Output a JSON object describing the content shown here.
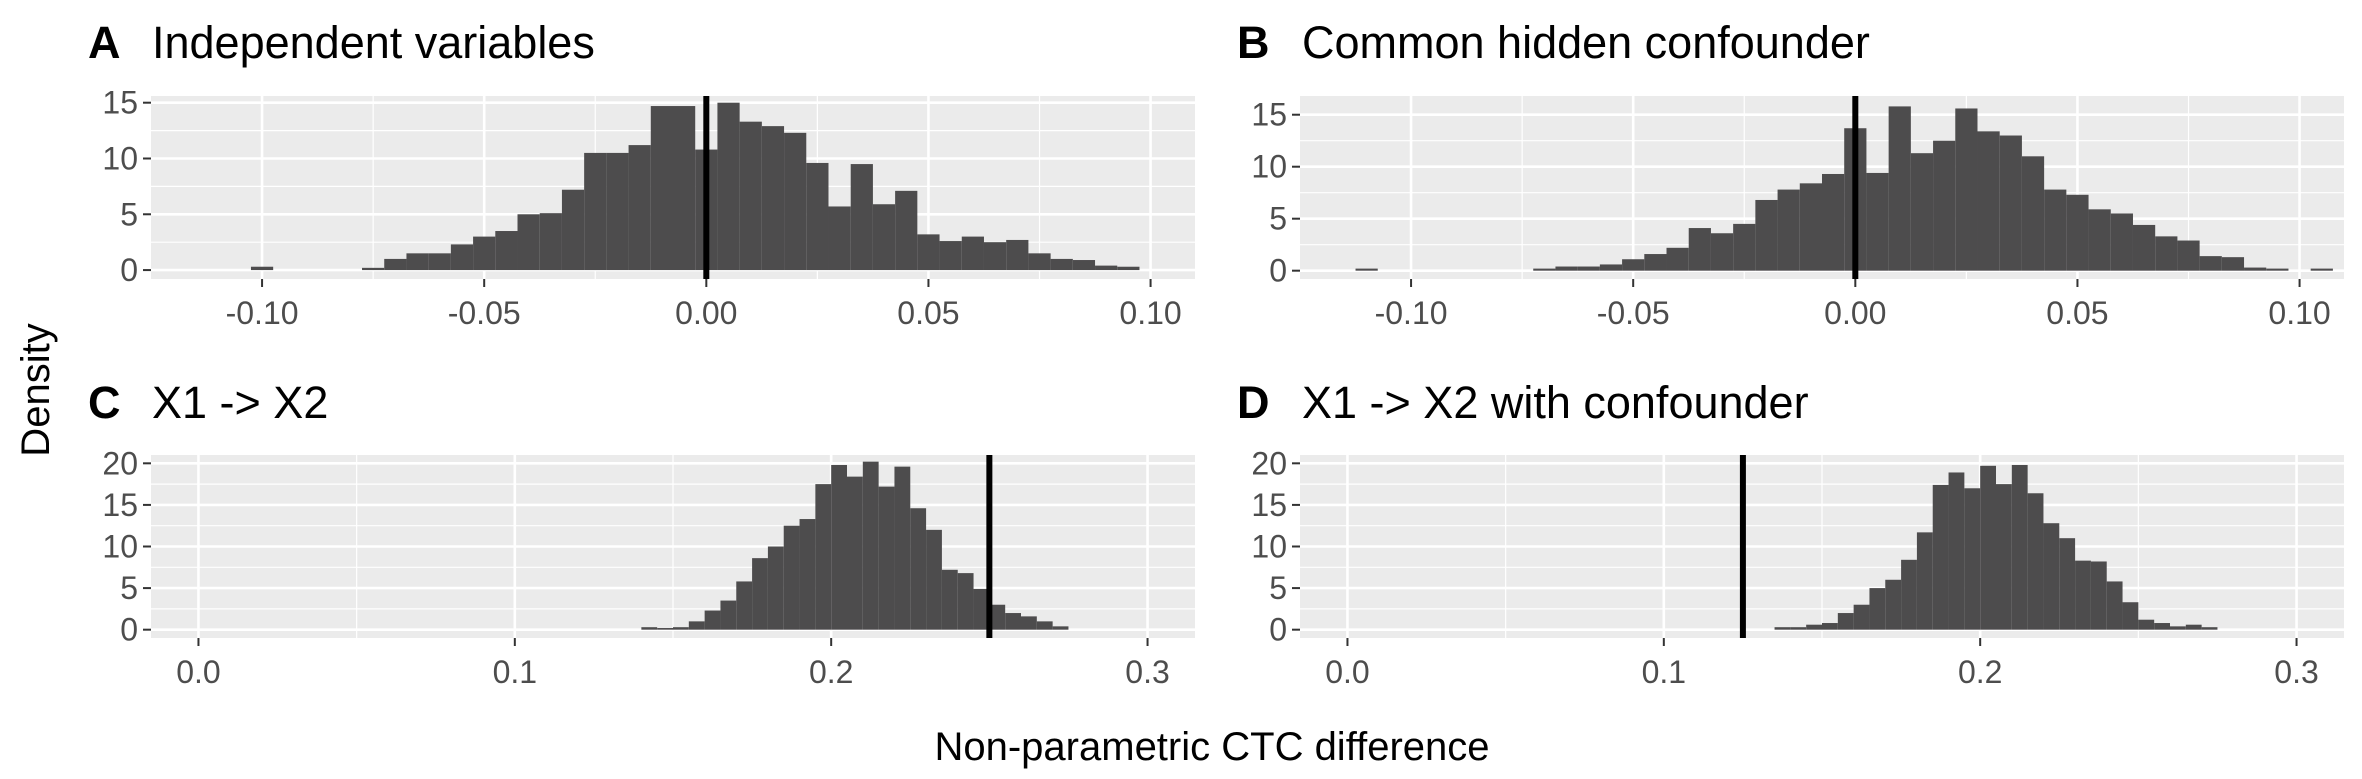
{
  "figure": {
    "ylabel": "Density",
    "xlabel": "Non-parametric CTC difference",
    "colors": {
      "panel_bg": "#EBEBEB",
      "grid": "#FFFFFF",
      "bar": "#4D4C4D",
      "vline": "#000000",
      "text": "#4D4D4D",
      "title": "#000000"
    }
  },
  "chart_data": [
    {
      "type": "bar",
      "tag": "A",
      "title": "Independent variables",
      "xlim": [
        -0.125,
        0.11
      ],
      "ylim": [
        -0.8,
        15.6
      ],
      "xticks": [
        -0.1,
        -0.05,
        0.0,
        0.05,
        0.1
      ],
      "xtick_labels": [
        "-0.10",
        "-0.05",
        "0.00",
        "0.05",
        "0.10"
      ],
      "yticks": [
        0,
        5,
        10,
        15
      ],
      "ytick_labels": [
        "0",
        "5",
        "10",
        "15"
      ],
      "vline": 0.0,
      "bin_width": 0.005,
      "bins_start": -0.1125,
      "values": [
        0,
        0,
        0.3,
        0,
        0,
        0,
        0,
        0.2,
        1,
        1.5,
        1.5,
        2.3,
        3,
        3.5,
        5,
        5.1,
        7.2,
        10.5,
        10.5,
        11.2,
        14.7,
        14.7,
        10.8,
        15,
        13.3,
        12.9,
        12.3,
        9.6,
        5.7,
        9.5,
        5.9,
        7.1,
        3.2,
        2.6,
        3,
        2.5,
        2.7,
        1.5,
        1,
        0.9,
        0.4,
        0.3,
        0,
        0,
        0,
        0,
        0
      ]
    },
    {
      "type": "bar",
      "tag": "B",
      "title": "Common hidden confounder",
      "xlim": [
        -0.125,
        0.11
      ],
      "ylim": [
        -0.8,
        16.8
      ],
      "xticks": [
        -0.1,
        -0.05,
        0.0,
        0.05,
        0.1
      ],
      "xtick_labels": [
        "-0.10",
        "-0.05",
        "0.00",
        "0.05",
        "0.10"
      ],
      "yticks": [
        0,
        5,
        10,
        15
      ],
      "ytick_labels": [
        "0",
        "5",
        "10",
        "15"
      ],
      "vline": 0.0,
      "bin_width": 0.005,
      "bins_start": -0.1125,
      "values": [
        0.2,
        0,
        0,
        0,
        0,
        0,
        0,
        0,
        0.2,
        0.4,
        0.4,
        0.6,
        1.1,
        1.6,
        2.2,
        4.1,
        3.6,
        4.5,
        6.8,
        7.8,
        8.4,
        9.3,
        13.7,
        9.4,
        15.8,
        11.3,
        12.5,
        15.6,
        13.4,
        13,
        11,
        7.8,
        7.3,
        5.9,
        5.5,
        4.4,
        3.3,
        2.9,
        1.4,
        1.3,
        0.3,
        0.2,
        0,
        0.2,
        0,
        0,
        0
      ]
    },
    {
      "type": "bar",
      "tag": "C",
      "title": "X1 -> X2",
      "xlim": [
        -0.015,
        0.315
      ],
      "ylim": [
        -1.0,
        21.0
      ],
      "xticks": [
        0.0,
        0.1,
        0.2,
        0.3
      ],
      "xtick_labels": [
        "0.0",
        "0.1",
        "0.2",
        "0.3"
      ],
      "yticks": [
        0,
        5,
        10,
        15,
        20
      ],
      "ytick_labels": [
        "0",
        "5",
        "10",
        "15",
        "20"
      ],
      "vline": 0.25,
      "bin_width": 0.005,
      "bins_start": 0.14,
      "values": [
        0.3,
        0.2,
        0.3,
        1,
        2.3,
        3.5,
        5.8,
        8.6,
        10,
        12.5,
        13.3,
        17.5,
        19.8,
        18.4,
        20.2,
        17.2,
        19.6,
        14.6,
        12,
        7.2,
        6.8,
        4.9,
        3,
        2,
        1.6,
        1,
        0.4,
        0,
        0,
        0
      ]
    },
    {
      "type": "bar",
      "tag": "D",
      "title": "X1 -> X2 with confounder",
      "xlim": [
        -0.015,
        0.315
      ],
      "ylim": [
        -1.0,
        21.0
      ],
      "xticks": [
        0.0,
        0.1,
        0.2,
        0.3
      ],
      "xtick_labels": [
        "0.0",
        "0.1",
        "0.2",
        "0.3"
      ],
      "yticks": [
        0,
        5,
        10,
        15,
        20
      ],
      "ytick_labels": [
        "0",
        "5",
        "10",
        "15",
        "20"
      ],
      "vline": 0.125,
      "bin_width": 0.005,
      "bins_start": 0.135,
      "values": [
        0.3,
        0.3,
        0.6,
        0.8,
        2,
        3,
        5,
        6,
        8.4,
        11.7,
        17.4,
        18.9,
        17,
        19.7,
        17.5,
        19.8,
        16.4,
        12.8,
        11,
        8.3,
        8.2,
        5.8,
        3.3,
        1.2,
        0.8,
        0.4,
        0.6,
        0.3,
        0,
        0
      ]
    }
  ]
}
